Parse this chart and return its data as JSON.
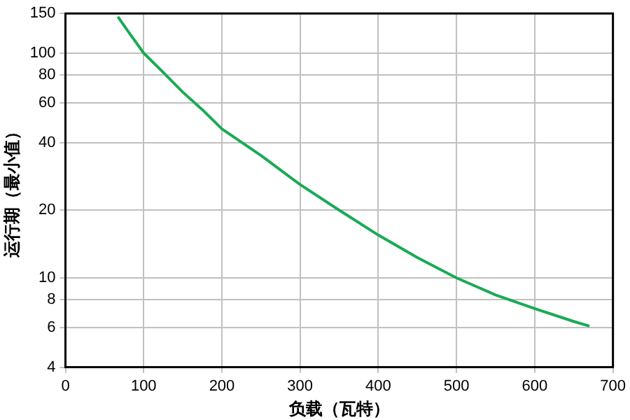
{
  "chart_data": {
    "type": "line",
    "xlabel": "负载（瓦特）",
    "ylabel": "运行期（最小值）",
    "x": [
      67,
      80,
      100,
      125,
      150,
      175,
      200,
      250,
      300,
      350,
      400,
      450,
      500,
      550,
      600,
      650,
      670
    ],
    "series": [
      {
        "color": "#1aaa55",
        "values": [
          145,
          125,
          100,
          82,
          67,
          56,
          46,
          35,
          26,
          20,
          15.5,
          12.3,
          10,
          8.4,
          7.3,
          6.4,
          6.1
        ]
      }
    ],
    "xlim": [
      0,
      700
    ],
    "xticks": [
      0,
      100,
      200,
      300,
      400,
      500,
      600,
      700
    ],
    "ylim": [
      4,
      150
    ],
    "yticks": [
      4,
      6,
      8,
      10,
      20,
      40,
      60,
      80,
      100,
      150
    ],
    "log": "y",
    "grid": true,
    "legend": false,
    "marker": "none",
    "line_style": "solid"
  }
}
